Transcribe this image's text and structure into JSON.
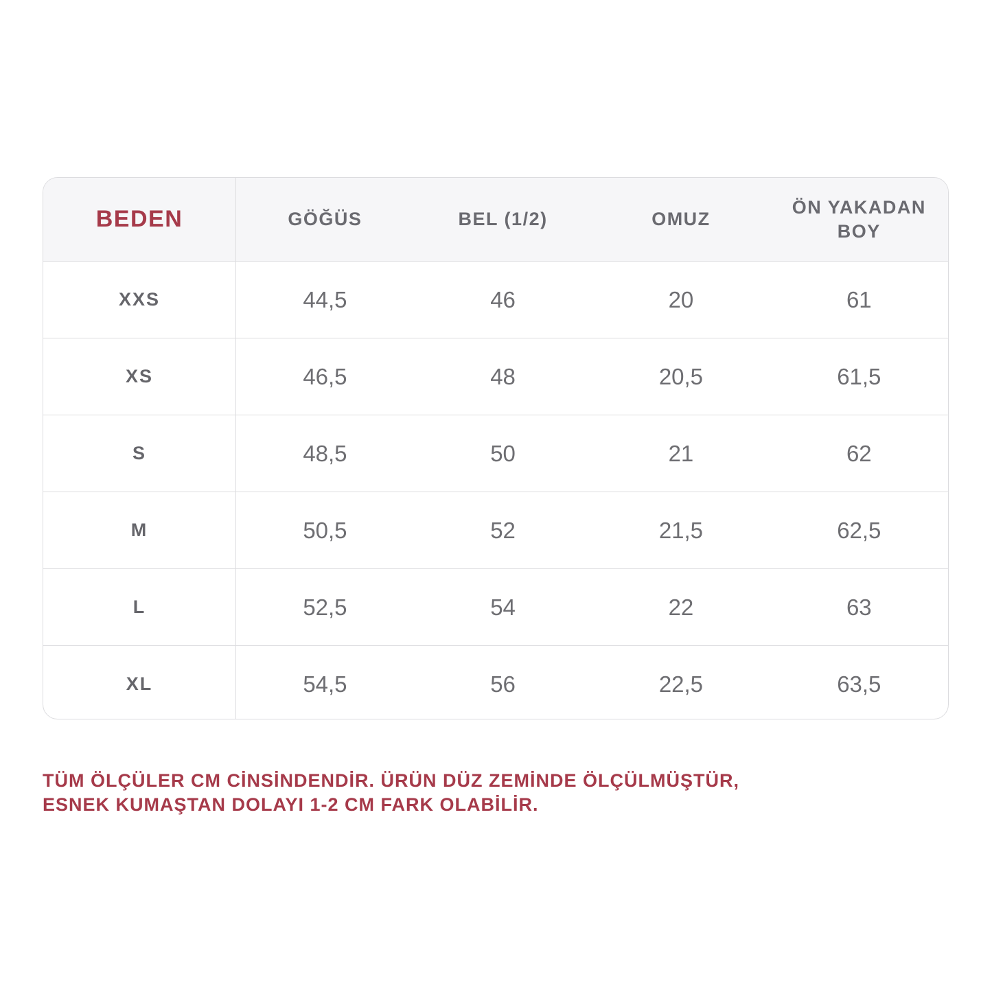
{
  "table": {
    "headers": [
      "BEDEN",
      "GÖĞÜS",
      "BEL (1/2)",
      "OMUZ",
      "ÖN YAKADAN BOY"
    ],
    "rows": [
      [
        "XXS",
        "44,5",
        "46",
        "20",
        "61"
      ],
      [
        "XS",
        "46,5",
        "48",
        "20,5",
        "61,5"
      ],
      [
        "S",
        "48,5",
        "50",
        "21",
        "62"
      ],
      [
        "M",
        "50,5",
        "52",
        "21,5",
        "62,5"
      ],
      [
        "L",
        "52,5",
        "54",
        "22",
        "63"
      ],
      [
        "XL",
        "54,5",
        "56",
        "22,5",
        "63,5"
      ]
    ]
  },
  "note": {
    "line1": "TÜM ÖLÇÜLER CM CİNSİNDENDİR. ÜRÜN DÜZ ZEMİNDE ÖLÇÜLMÜŞTÜR,",
    "line2": "ESNEK KUMAŞTAN DOLAYI 1-2 CM FARK OLABİLİR."
  },
  "colors": {
    "accent": "#a63a4a",
    "text": "#6e6e72",
    "header_bg": "#f6f6f8",
    "border": "#dcdcdf"
  }
}
